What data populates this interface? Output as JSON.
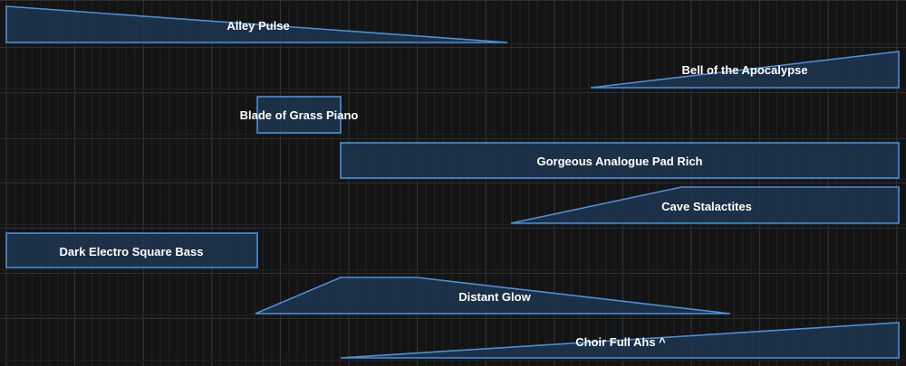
{
  "arrangement": {
    "accent_color": "#4a90d9",
    "fill_color": "#1d3550",
    "clips": [
      {
        "id": "alley-pulse",
        "label": "Alley Pulse",
        "shape": "fade-out"
      },
      {
        "id": "bell-of-the-apocalypse",
        "label": "Bell of the Apocalypse",
        "shape": "fade-in"
      },
      {
        "id": "blade-of-grass-piano",
        "label": "Blade of Grass Piano",
        "shape": "block"
      },
      {
        "id": "gorgeous-analogue-pad-rich",
        "label": "Gorgeous Analogue Pad Rich",
        "shape": "block"
      },
      {
        "id": "cave-stalactites",
        "label": "Cave Stalactites",
        "shape": "fade-in-sustain"
      },
      {
        "id": "dark-electro-square-bass",
        "label": "Dark Electro Square Bass",
        "shape": "block"
      },
      {
        "id": "distant-glow",
        "label": "Distant Glow",
        "shape": "attack-sustain-release"
      },
      {
        "id": "choir-full-ahs",
        "label": "Choir Full Ahs  ^",
        "shape": "fade-in"
      }
    ]
  }
}
